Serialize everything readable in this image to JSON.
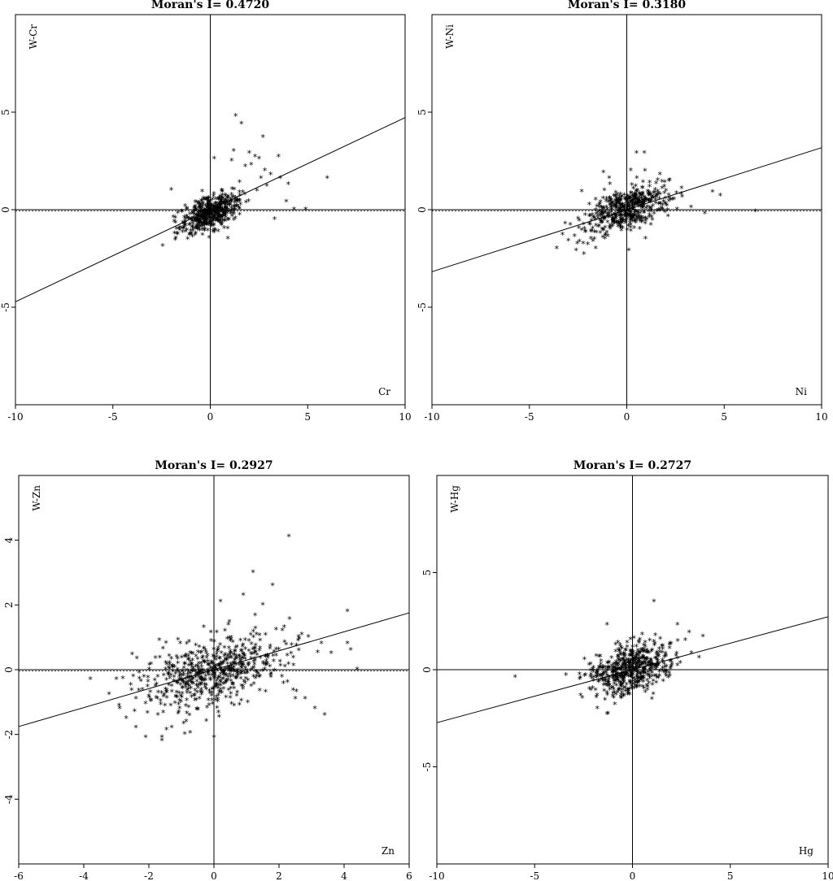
{
  "chart_data": [
    {
      "type": "scatter",
      "title": "Moran's I= 0.4720",
      "xlabel": "Cr",
      "ylabel": "W-Cr",
      "xlim": [
        -10,
        10
      ],
      "ylim": [
        -10,
        10
      ],
      "xticks": [
        -10,
        -5,
        0,
        5,
        10
      ],
      "yticks": [
        -5,
        0,
        5
      ],
      "xtick_labels": [
        "-10",
        "-5",
        "0",
        "5",
        "10"
      ],
      "ytick_labels": [
        "-5",
        "0",
        "5"
      ],
      "slope": 0.472,
      "marker": "*",
      "cluster": {
        "cx": 0.0,
        "cy": -0.2,
        "sx": 0.75,
        "sy": 0.5,
        "n": 520,
        "corr": 0.55
      },
      "outliers": [
        [
          1.3,
          4.8
        ],
        [
          1.6,
          4.4
        ],
        [
          2.7,
          3.7
        ],
        [
          1.2,
          3.0
        ],
        [
          2.0,
          2.9
        ],
        [
          2.3,
          2.7
        ],
        [
          2.5,
          2.6
        ],
        [
          3.5,
          2.7
        ],
        [
          2.1,
          2.3
        ],
        [
          1.8,
          2.2
        ],
        [
          2.8,
          2.0
        ],
        [
          3.1,
          1.8
        ],
        [
          3.6,
          1.6
        ],
        [
          6.0,
          1.6
        ],
        [
          4.0,
          1.3
        ],
        [
          2.9,
          1.2
        ],
        [
          1.5,
          1.4
        ],
        [
          2.6,
          1.6
        ],
        [
          3.9,
          0.4
        ],
        [
          4.3,
          0.0
        ],
        [
          4.9,
          0.0
        ],
        [
          3.3,
          -0.5
        ],
        [
          0.2,
          2.6
        ],
        [
          -2.0,
          1.0
        ],
        [
          0.9,
          -1.5
        ],
        [
          1.1,
          2.5
        ]
      ]
    },
    {
      "type": "scatter",
      "title": "Moran's I= 0.3180",
      "xlabel": "Ni",
      "ylabel": "W-Ni",
      "xlim": [
        -10,
        10
      ],
      "ylim": [
        -10,
        10
      ],
      "xticks": [
        -10,
        -5,
        0,
        5,
        10
      ],
      "yticks": [
        -5,
        0,
        5
      ],
      "xtick_labels": [
        "-10",
        "-5",
        "0",
        "5",
        "10"
      ],
      "ytick_labels": [
        "-5",
        "0",
        "5"
      ],
      "slope": 0.318,
      "marker": "*",
      "cluster": {
        "cx": 0.0,
        "cy": 0.0,
        "sx": 1.0,
        "sy": 0.6,
        "n": 520,
        "corr": 0.45
      },
      "outliers": [
        [
          0.5,
          2.9
        ],
        [
          0.9,
          2.9
        ],
        [
          0.2,
          2.0
        ],
        [
          -1.2,
          1.9
        ],
        [
          -0.9,
          1.6
        ],
        [
          4.4,
          0.9
        ],
        [
          4.8,
          0.7
        ],
        [
          3.3,
          0.1
        ],
        [
          4.0,
          -0.2
        ],
        [
          6.6,
          -0.1
        ],
        [
          2.8,
          0.8
        ],
        [
          2.2,
          1.5
        ],
        [
          1.7,
          1.8
        ],
        [
          -3.6,
          -2.0
        ],
        [
          -2.2,
          -2.3
        ],
        [
          -2.6,
          -2.1
        ],
        [
          -3.0,
          -1.6
        ],
        [
          -3.3,
          -1.3
        ],
        [
          -2.9,
          -0.8
        ],
        [
          -2.0,
          -1.8
        ],
        [
          0.1,
          -2.1
        ],
        [
          -1.6,
          -2.0
        ]
      ]
    },
    {
      "type": "scatter",
      "title": "Moran's I= 0.2927",
      "xlabel": "Zn",
      "ylabel": "W-Zn",
      "xlim": [
        -6,
        6
      ],
      "ylim": [
        -6,
        6
      ],
      "xticks": [
        -6,
        -4,
        -2,
        0,
        2,
        4,
        6
      ],
      "yticks": [
        -4,
        -2,
        0,
        2,
        4
      ],
      "xtick_labels": [
        "-6",
        "-4",
        "-2",
        "0",
        "2",
        "4",
        "6"
      ],
      "ytick_labels": [
        "-4",
        "-2",
        "0",
        "2",
        "4"
      ],
      "slope": 0.2927,
      "marker": "*",
      "cluster": {
        "cx": 0.0,
        "cy": -0.1,
        "sx": 1.05,
        "sy": 0.55,
        "n": 620,
        "corr": 0.4
      },
      "outliers": [
        [
          2.3,
          4.1
        ],
        [
          1.2,
          3.0
        ],
        [
          0.9,
          2.3
        ],
        [
          0.2,
          2.1
        ],
        [
          1.8,
          2.6
        ],
        [
          1.5,
          2.0
        ],
        [
          4.1,
          1.8
        ],
        [
          2.1,
          1.2
        ],
        [
          2.6,
          1.0
        ],
        [
          2.9,
          1.0
        ],
        [
          3.3,
          0.8
        ],
        [
          3.6,
          0.5
        ],
        [
          4.1,
          0.8
        ],
        [
          4.2,
          0.6
        ],
        [
          4.4,
          0.0
        ],
        [
          2.8,
          -0.9
        ],
        [
          3.1,
          -1.2
        ],
        [
          3.4,
          -1.4
        ],
        [
          2.5,
          -0.9
        ],
        [
          -3.8,
          -0.3
        ],
        [
          -3.0,
          -0.3
        ],
        [
          -2.4,
          -0.9
        ],
        [
          -2.9,
          -1.2
        ],
        [
          -2.7,
          -1.5
        ],
        [
          -2.4,
          -1.8
        ],
        [
          -2.1,
          -2.1
        ],
        [
          -1.6,
          -2.2
        ],
        [
          -1.6,
          -2.1
        ],
        [
          0.0,
          -2.1
        ],
        [
          -0.9,
          -2.0
        ],
        [
          -1.3,
          -1.8
        ],
        [
          -2.3,
          -0.1
        ]
      ]
    },
    {
      "type": "scatter",
      "title": "Moran's I= 0.2727",
      "xlabel": "Hg",
      "ylabel": "W-Hg",
      "xlim": [
        -10,
        10
      ],
      "ylim": [
        -10,
        10
      ],
      "xticks": [
        -10,
        -5,
        0,
        5,
        10
      ],
      "yticks": [
        -5,
        0,
        5
      ],
      "xtick_labels": [
        "-10",
        "-5",
        "0",
        "5",
        "10"
      ],
      "ytick_labels": [
        "-5",
        "0",
        "5"
      ],
      "slope": 0.2727,
      "marker": "*",
      "cluster": {
        "cx": 0.0,
        "cy": 0.0,
        "sx": 1.0,
        "sy": 0.65,
        "n": 560,
        "corr": 0.35
      },
      "outliers": [
        [
          1.1,
          3.5
        ],
        [
          -1.3,
          2.3
        ],
        [
          2.3,
          2.3
        ],
        [
          2.9,
          1.9
        ],
        [
          3.6,
          1.7
        ],
        [
          2.7,
          1.5
        ],
        [
          3.4,
          0.6
        ],
        [
          2.3,
          0.2
        ],
        [
          -6.0,
          -0.4
        ],
        [
          -3.4,
          -0.3
        ],
        [
          -2.7,
          -0.5
        ],
        [
          -2.2,
          -1.0
        ],
        [
          -1.3,
          -2.3
        ],
        [
          -0.9,
          -1.8
        ],
        [
          -2.4,
          -0.3
        ],
        [
          1.5,
          1.2
        ]
      ]
    }
  ]
}
